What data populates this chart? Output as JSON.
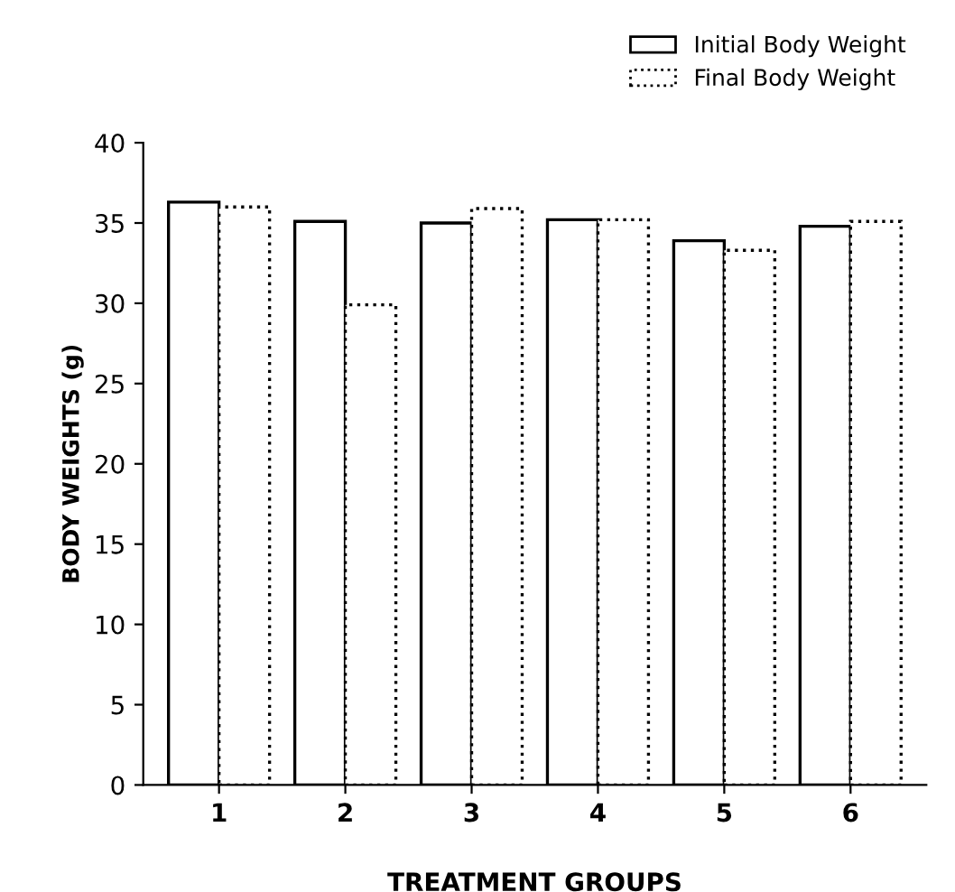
{
  "chart_data": {
    "type": "bar",
    "xlabel": "TREATMENT GROUPS",
    "ylabel": "BODY WEIGHTS (g)",
    "categories": [
      "1",
      "2",
      "3",
      "4",
      "5",
      "6"
    ],
    "series": [
      {
        "name": "Initial Body Weight",
        "color": "#ffffff",
        "line_style": "solid",
        "values": [
          36.3,
          35.1,
          35,
          35.2,
          33.9,
          34.8
        ]
      },
      {
        "name": "Final Body Weight",
        "color": "#ffffff",
        "line_style": "dotted",
        "values": [
          36,
          29.9,
          35.9,
          35.2,
          33.3,
          35.1
        ]
      }
    ],
    "ylim": [
      0,
      40
    ],
    "yticks": [
      0,
      5,
      10,
      15,
      20,
      25,
      30,
      35,
      40
    ],
    "legend": "top right",
    "grid": false
  }
}
